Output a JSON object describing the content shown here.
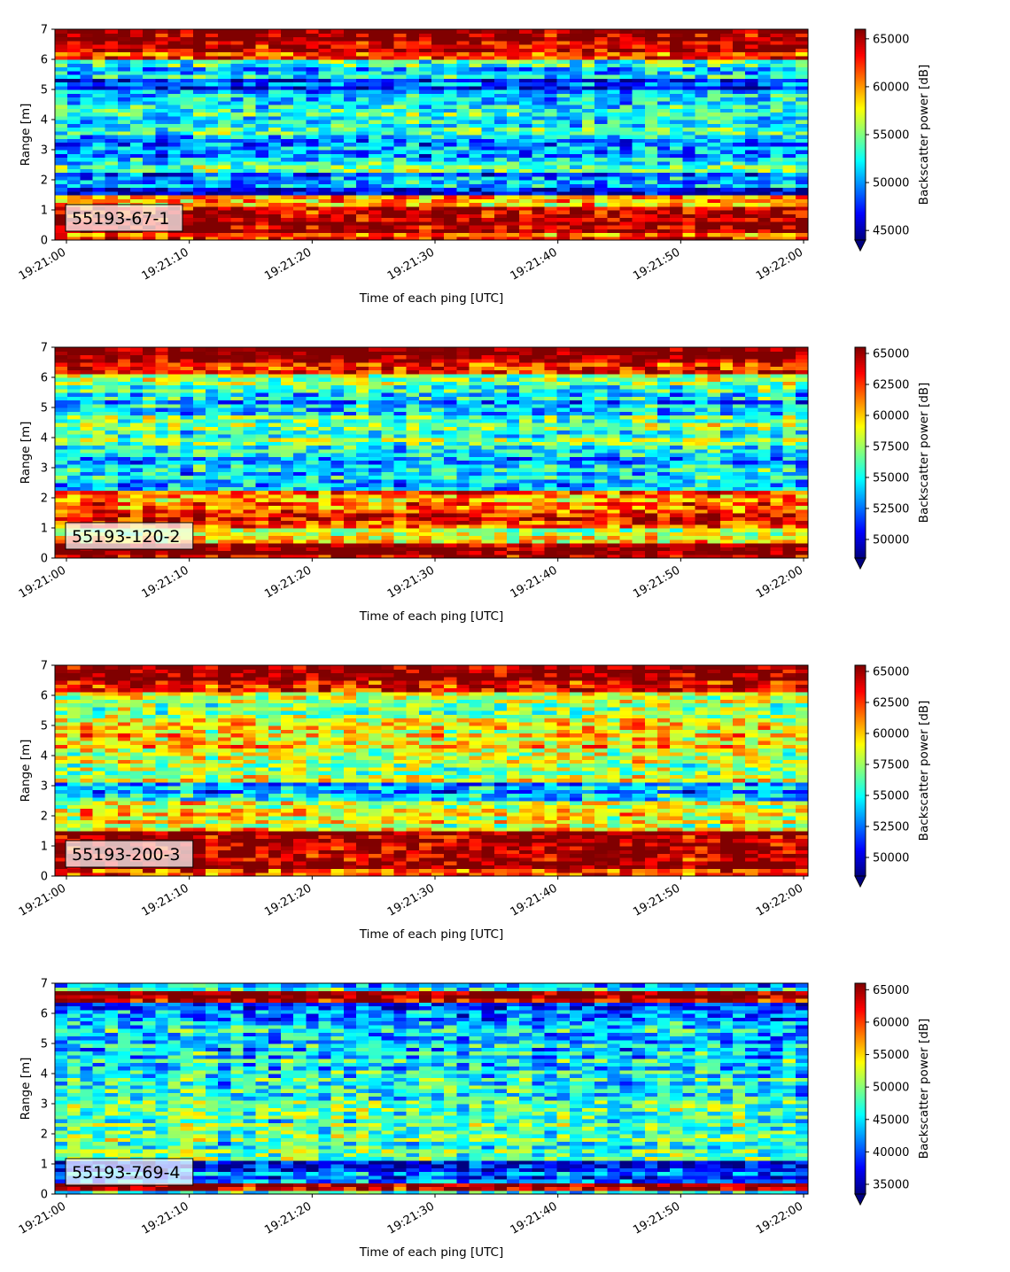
{
  "figure": {
    "colormap": "jet",
    "background": "#ffffff"
  },
  "chart_data": [
    {
      "type": "heatmap",
      "label": "55193-67-1",
      "xlabel": "Time of each ping [UTC]",
      "ylabel": "Range [m]",
      "colorbar_label": "Backscatter power [dB]",
      "x_ticks": [
        "19:21:00",
        "19:21:10",
        "19:21:20",
        "19:21:30",
        "19:21:40",
        "19:21:50",
        "19:22:00"
      ],
      "y_ticks": [
        0,
        1,
        2,
        3,
        4,
        5,
        6,
        7
      ],
      "ylim": [
        0,
        7
      ],
      "color_ticks": [
        45000,
        50000,
        55000,
        60000,
        65000
      ],
      "vmin": 44000,
      "vmax": 66000,
      "ping_count": 60,
      "range_bins": 56,
      "profile": [
        {
          "range": [
            0.0,
            0.3
          ],
          "value": 62000
        },
        {
          "range": [
            0.3,
            1.1
          ],
          "value": 65500
        },
        {
          "range": [
            1.1,
            1.5
          ],
          "value": 59000
        },
        {
          "range": [
            1.5,
            1.8
          ],
          "value": 47000
        },
        {
          "range": [
            1.8,
            2.2
          ],
          "value": 50000
        },
        {
          "range": [
            2.2,
            2.8
          ],
          "value": 53500
        },
        {
          "range": [
            2.8,
            3.4
          ],
          "value": 49500
        },
        {
          "range": [
            3.4,
            4.0
          ],
          "value": 52500
        },
        {
          "range": [
            4.0,
            4.5
          ],
          "value": 53500
        },
        {
          "range": [
            4.5,
            5.0
          ],
          "value": 51500
        },
        {
          "range": [
            5.0,
            5.4
          ],
          "value": 48000
        },
        {
          "range": [
            5.4,
            6.0
          ],
          "value": 52000
        },
        {
          "range": [
            6.0,
            6.3
          ],
          "value": 61500
        },
        {
          "range": [
            6.3,
            7.0
          ],
          "value": 65500
        }
      ]
    },
    {
      "type": "heatmap",
      "label": "55193-120-2",
      "xlabel": "Time of each ping [UTC]",
      "ylabel": "Range [m]",
      "colorbar_label": "Backscatter power [dB]",
      "x_ticks": [
        "19:21:00",
        "19:21:10",
        "19:21:20",
        "19:21:30",
        "19:21:40",
        "19:21:50",
        "19:22:00"
      ],
      "y_ticks": [
        0,
        1,
        2,
        3,
        4,
        5,
        6,
        7
      ],
      "ylim": [
        0,
        7
      ],
      "color_ticks": [
        50000,
        52500,
        55000,
        57500,
        60000,
        62500,
        65000
      ],
      "vmin": 48500,
      "vmax": 65500,
      "ping_count": 60,
      "range_bins": 56,
      "profile": [
        {
          "range": [
            0.0,
            0.5
          ],
          "value": 65500
        },
        {
          "range": [
            0.5,
            1.0
          ],
          "value": 58500
        },
        {
          "range": [
            1.0,
            1.6
          ],
          "value": 62500
        },
        {
          "range": [
            1.6,
            2.3
          ],
          "value": 61500
        },
        {
          "range": [
            2.3,
            2.9
          ],
          "value": 54000
        },
        {
          "range": [
            2.9,
            3.5
          ],
          "value": 54500
        },
        {
          "range": [
            3.5,
            4.7
          ],
          "value": 56500
        },
        {
          "range": [
            4.7,
            5.5
          ],
          "value": 54000
        },
        {
          "range": [
            5.5,
            6.1
          ],
          "value": 56500
        },
        {
          "range": [
            6.1,
            6.5
          ],
          "value": 63500
        },
        {
          "range": [
            6.5,
            7.0
          ],
          "value": 65500
        }
      ]
    },
    {
      "type": "heatmap",
      "label": "55193-200-3",
      "xlabel": "Time of each ping [UTC]",
      "ylabel": "Range [m]",
      "colorbar_label": "Backscatter power [dB]",
      "x_ticks": [
        "19:21:00",
        "19:21:10",
        "19:21:20",
        "19:21:30",
        "19:21:40",
        "19:21:50",
        "19:22:00"
      ],
      "y_ticks": [
        0,
        1,
        2,
        3,
        4,
        5,
        6,
        7
      ],
      "ylim": [
        0,
        7
      ],
      "color_ticks": [
        50000,
        52500,
        55000,
        57500,
        60000,
        62500,
        65000
      ],
      "vmin": 48500,
      "vmax": 65500,
      "ping_count": 60,
      "range_bins": 56,
      "profile": [
        {
          "range": [
            0.0,
            0.3
          ],
          "value": 62500
        },
        {
          "range": [
            0.3,
            1.5
          ],
          "value": 65000
        },
        {
          "range": [
            1.5,
            2.5
          ],
          "value": 58500
        },
        {
          "range": [
            2.5,
            3.1
          ],
          "value": 53500
        },
        {
          "range": [
            3.1,
            4.2
          ],
          "value": 58000
        },
        {
          "range": [
            4.2,
            5.3
          ],
          "value": 59500
        },
        {
          "range": [
            5.3,
            6.1
          ],
          "value": 57500
        },
        {
          "range": [
            6.1,
            6.5
          ],
          "value": 64000
        },
        {
          "range": [
            6.5,
            7.0
          ],
          "value": 65500
        }
      ]
    },
    {
      "type": "heatmap",
      "label": "55193-769-4",
      "xlabel": "Time of each ping [UTC]",
      "ylabel": "Range [m]",
      "colorbar_label": "Backscatter power [dB]",
      "x_ticks": [
        "19:21:00",
        "19:21:10",
        "19:21:20",
        "19:21:30",
        "19:21:40",
        "19:21:50",
        "19:22:00"
      ],
      "y_ticks": [
        0,
        1,
        2,
        3,
        4,
        5,
        6,
        7
      ],
      "ylim": [
        0,
        7
      ],
      "color_ticks": [
        35000,
        40000,
        45000,
        50000,
        55000,
        60000,
        65000
      ],
      "vmin": 33500,
      "vmax": 66000,
      "ping_count": 60,
      "range_bins": 56,
      "profile": [
        {
          "range": [
            0.0,
            0.15
          ],
          "value": 44000
        },
        {
          "range": [
            0.15,
            0.35
          ],
          "value": 65500
        },
        {
          "range": [
            0.35,
            0.7
          ],
          "value": 40000
        },
        {
          "range": [
            0.7,
            1.1
          ],
          "value": 37500
        },
        {
          "range": [
            1.1,
            2.5
          ],
          "value": 47500
        },
        {
          "range": [
            2.5,
            4.5
          ],
          "value": 46500
        },
        {
          "range": [
            4.5,
            5.8
          ],
          "value": 44500
        },
        {
          "range": [
            5.8,
            6.4
          ],
          "value": 40500
        },
        {
          "range": [
            6.4,
            6.8
          ],
          "value": 64000
        },
        {
          "range": [
            6.8,
            7.0
          ],
          "value": 45000
        }
      ]
    }
  ]
}
